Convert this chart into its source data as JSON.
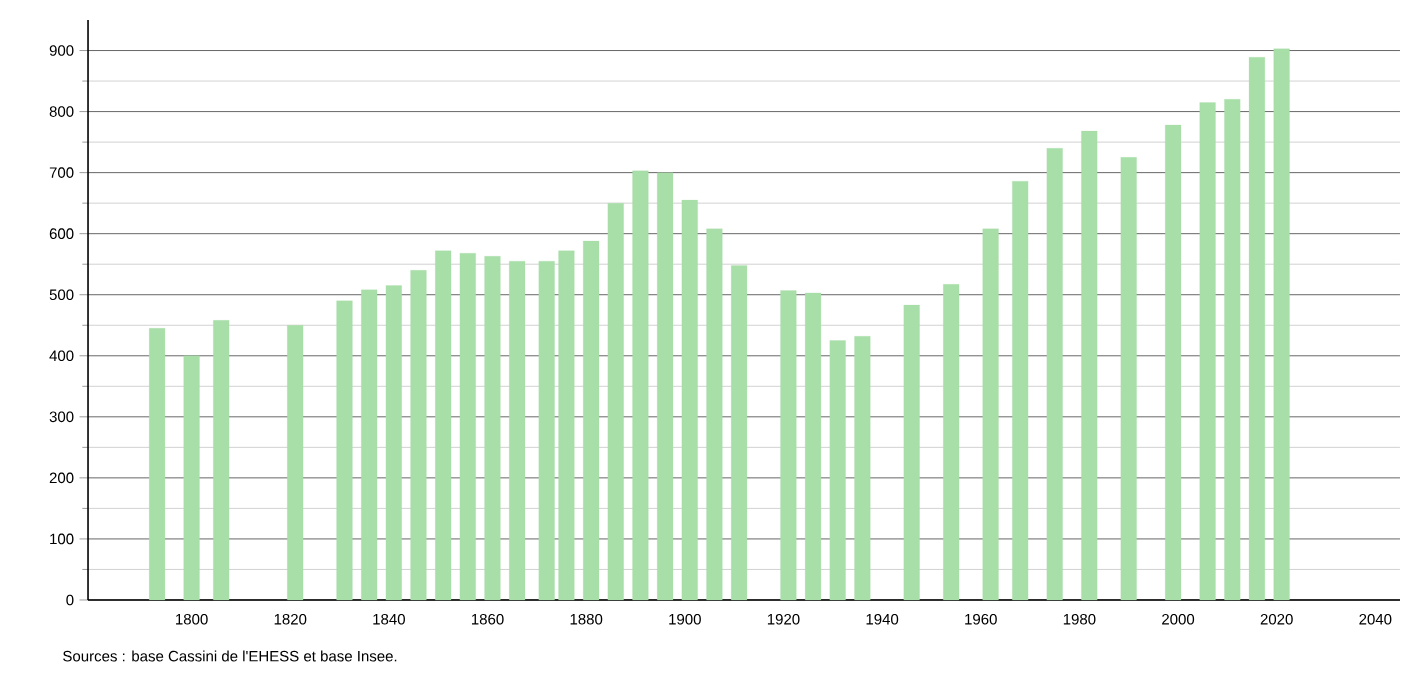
{
  "chart_data": {
    "type": "bar",
    "x": [
      1793,
      1800,
      1806,
      1821,
      1831,
      1836,
      1841,
      1846,
      1851,
      1856,
      1861,
      1866,
      1872,
      1876,
      1881,
      1886,
      1891,
      1896,
      1901,
      1906,
      1911,
      1921,
      1926,
      1931,
      1936,
      1946,
      1954,
      1962,
      1968,
      1975,
      1982,
      1990,
      1999,
      2006,
      2011,
      2016,
      2021
    ],
    "values": [
      445,
      400,
      458,
      450,
      490,
      508,
      515,
      540,
      572,
      568,
      563,
      555,
      555,
      572,
      588,
      650,
      703,
      700,
      655,
      608,
      548,
      507,
      503,
      425,
      432,
      483,
      517,
      608,
      686,
      740,
      768,
      725,
      778,
      815,
      820,
      889,
      903
    ],
    "color": "#a8dea8",
    "xlim": [
      1779,
      2045
    ],
    "ylim": [
      0,
      950
    ],
    "xticks": [
      1800,
      1820,
      1840,
      1860,
      1880,
      1900,
      1920,
      1940,
      1960,
      1980,
      2000,
      2020,
      2040
    ],
    "yticks": [
      0,
      100,
      200,
      300,
      400,
      500,
      600,
      700,
      800,
      900
    ],
    "grid": "y",
    "annotations": [
      "Sources : base Cassini de l'EHESS et base Insee."
    ]
  }
}
